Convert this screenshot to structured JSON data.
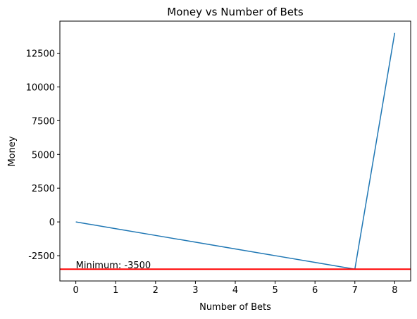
{
  "chart_data": {
    "type": "line",
    "title": "Money vs Number of Bets",
    "x_label": "Number of Bets",
    "y_label": "Money",
    "x": [
      0,
      1,
      2,
      3,
      4,
      5,
      6,
      7,
      8
    ],
    "series": [
      {
        "name": "Money",
        "color": "#1f77b4",
        "values": [
          0,
          -500,
          -1000,
          -1500,
          -2000,
          -2500,
          -3000,
          -3500,
          14000
        ]
      }
    ],
    "hline": {
      "value": -3500,
      "color": "#ff0000"
    },
    "annotation": "Minimum: -3500",
    "xlim": [
      -0.4,
      8.4
    ],
    "ylim": [
      -4375,
      14875
    ],
    "xticks": [
      0,
      1,
      2,
      3,
      4,
      5,
      6,
      7,
      8
    ],
    "yticks": [
      -2500,
      0,
      2500,
      5000,
      7500,
      10000,
      12500
    ],
    "grid": false
  }
}
